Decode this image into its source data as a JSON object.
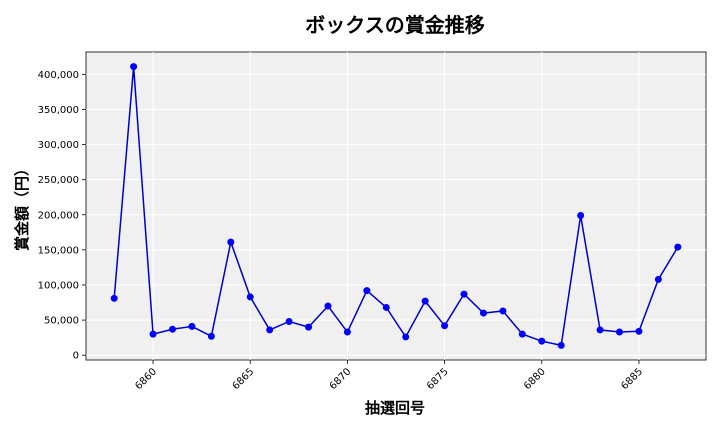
{
  "chart_data": {
    "type": "line",
    "title": "ボックスの賞金推移",
    "xlabel": "抽選回号",
    "ylabel": "賞金額（円）",
    "x": [
      6858,
      6859,
      6860,
      6861,
      6862,
      6863,
      6864,
      6865,
      6866,
      6867,
      6868,
      6869,
      6870,
      6871,
      6872,
      6873,
      6874,
      6875,
      6876,
      6877,
      6878,
      6879,
      6880,
      6881,
      6882,
      6883,
      6884,
      6885,
      6886,
      6887
    ],
    "series": [
      {
        "values": [
          81000,
          411000,
          30000,
          37000,
          41000,
          27000,
          161000,
          83000,
          36000,
          48000,
          40000,
          70000,
          33000,
          92000,
          68000,
          26000,
          77000,
          42000,
          87000,
          60000,
          63000,
          30000,
          20000,
          14000,
          199000,
          36000,
          33000,
          34000,
          108000,
          154000
        ]
      }
    ],
    "x_ticks": [
      "6860",
      "6865",
      "6870",
      "6875",
      "6880",
      "6885"
    ],
    "y_ticks": [
      "0",
      "50,000",
      "100,000",
      "150,000",
      "200,000",
      "250,000",
      "300,000",
      "350,000",
      "400,000"
    ],
    "xlim": [
      6856.55,
      6888.45
    ],
    "ylim": [
      -6855,
      431855
    ],
    "grid": true,
    "line_color": "#0000cc",
    "marker_color": "#0000ff",
    "plot_background": "#f0f0f0"
  }
}
